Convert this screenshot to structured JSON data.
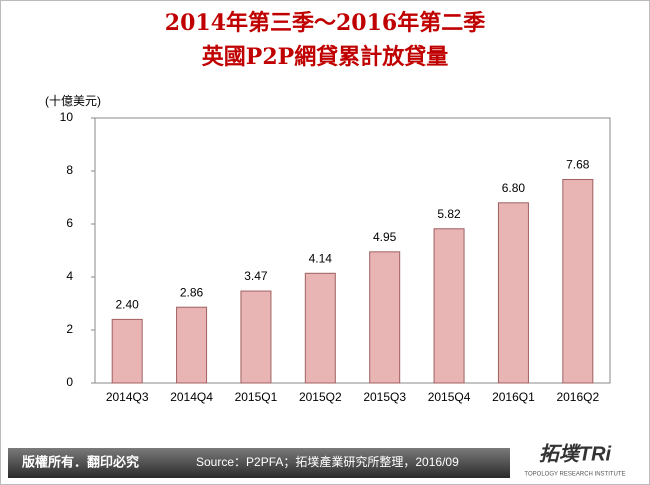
{
  "chart_data": {
    "type": "bar",
    "title": "2014年第三季～2016年第二季",
    "subtitle": "英國P2P網貸累計放貸量",
    "y_label": "(十億美元)",
    "categories": [
      "2014Q3",
      "2014Q4",
      "2015Q1",
      "2015Q2",
      "2015Q3",
      "2015Q4",
      "2016Q1",
      "2016Q2"
    ],
    "values": [
      2.4,
      2.86,
      3.47,
      4.14,
      4.95,
      5.82,
      6.8,
      7.68
    ],
    "value_labels": [
      "2.40",
      "2.86",
      "3.47",
      "4.14",
      "4.95",
      "5.82",
      "6.80",
      "7.68"
    ],
    "color": "#e8b4b4",
    "ylim": [
      0,
      10
    ],
    "yticks": [
      0,
      2,
      4,
      6,
      8,
      10
    ],
    "grid": false
  },
  "footer": {
    "copyright": "版權所有．翻印必究",
    "source": "Source：P2PFA；拓墣產業研究所整理，2016/09",
    "logo": "拓墣TRi",
    "logo_sub": "TOPOLOGY RESEARCH INSTITUTE"
  }
}
